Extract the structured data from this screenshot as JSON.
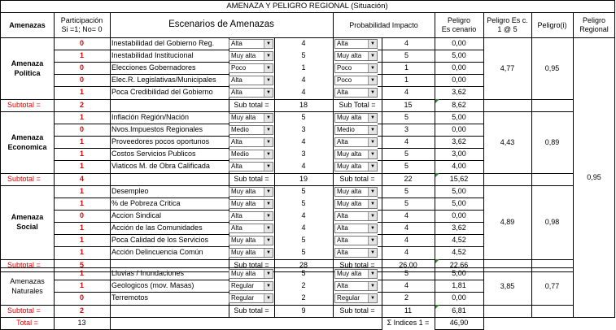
{
  "title": "AMENAZA Y PELIGRO REGIONAL (Situación)",
  "headers": {
    "amenazas": "Amenazas",
    "participacion_1": "Participación",
    "participacion_2": "Si =1; No= 0",
    "escenarios": "Escenarios de Amenazas",
    "probabilidad": "Probabilidad Impacto",
    "peligro_escenario_1": "Peligro",
    "peligro_escenario_2": "Es cenario",
    "peligro_esc_1": "Peligro Es c.",
    "peligro_esc_2": "1 @ 5",
    "peligro_i": "Peligro(i)",
    "peligro_regional_1": "Peligro",
    "peligro_regional_2": "Regional"
  },
  "groups": [
    {
      "name_1": "Amenaza",
      "name_2": "Politica",
      "rows": [
        {
          "part": "0",
          "scenario": "Inestabilidad del Gobierno Reg.",
          "sel1": "Alta",
          "n1": "4",
          "sel2": "Alta",
          "n2": "4",
          "peligro": "0,00"
        },
        {
          "part": "1",
          "scenario": "Inestabilidad Institucional",
          "sel1": "Muy alta",
          "n1": "5",
          "sel2": "Muy alta",
          "n2": "5",
          "peligro": "5,00"
        },
        {
          "part": "0",
          "scenario": "Elecciones Gobernadores",
          "sel1": "Poco",
          "n1": "1",
          "sel2": "Poco",
          "n2": "1",
          "peligro": "0,00"
        },
        {
          "part": "0",
          "scenario": "Elec.R. Legislativas/Municipales",
          "sel1": "Alta",
          "n1": "4",
          "sel2": "Poco",
          "n2": "1",
          "peligro": "0,00"
        },
        {
          "part": "1",
          "scenario": "Poca Credibilidad del Gobierno",
          "sel1": "Alta",
          "n1": "4",
          "sel2": "Alta",
          "n2": "4",
          "peligro": "3,62"
        }
      ],
      "subtotal": {
        "label": "Subtotal =",
        "part": "2",
        "label1": "Sub total =",
        "n1": "18",
        "label2": "Sub Total =",
        "n2": "15",
        "peligro": "8,62"
      },
      "peligro_esc": "4,77",
      "peligro_i": "0,95"
    },
    {
      "name_1": "Amenaza",
      "name_2": "Economica",
      "rows": [
        {
          "part": "1",
          "scenario": "Inflación Región/Nación",
          "sel1": "Muy alta",
          "n1": "5",
          "sel2": "Muy alta",
          "n2": "5",
          "peligro": "5,00"
        },
        {
          "part": "0",
          "scenario": "Nvos.Impuestos Regionales",
          "sel1": "Medio",
          "n1": "3",
          "sel2": "Medio",
          "n2": "3",
          "peligro": "0,00"
        },
        {
          "part": "1",
          "scenario": "Proveedores pocos oportunos",
          "sel1": "Alta",
          "n1": "4",
          "sel2": "Alta",
          "n2": "4",
          "peligro": "3,62"
        },
        {
          "part": "1",
          "scenario": "Costos Servicios Publicos",
          "sel1": "Medio",
          "n1": "3",
          "sel2": "Muy alta",
          "n2": "5",
          "peligro": "3,00"
        },
        {
          "part": "1",
          "scenario": "Viaticos M. de Obra Calificada",
          "sel1": "Alta",
          "n1": "4",
          "sel2": "Muy alta",
          "n2": "5",
          "peligro": "4,00"
        }
      ],
      "subtotal": {
        "label": "Subtotal =",
        "part": "4",
        "label1": "Sub total =",
        "n1": "19",
        "label2": "Sub total =",
        "n2": "22",
        "peligro": "15,62"
      },
      "peligro_esc": "4,43",
      "peligro_i": "0,89"
    },
    {
      "name_1": "Amenaza",
      "name_2": "Social",
      "rows": [
        {
          "part": "1",
          "scenario": "Desempleo",
          "sel1": "Muy alta",
          "n1": "5",
          "sel2": "Muy alta",
          "n2": "5",
          "peligro": "5,00"
        },
        {
          "part": "1",
          "scenario": "% de Pobreza Critica",
          "sel1": "Muy alta",
          "n1": "5",
          "sel2": "Muy alta",
          "n2": "5",
          "peligro": "5,00"
        },
        {
          "part": "0",
          "scenario": "Accion Sindical",
          "sel1": "Alta",
          "n1": "4",
          "sel2": "Alta",
          "n2": "4",
          "peligro": "0,00"
        },
        {
          "part": "1",
          "scenario": "Acción de las Comunidades",
          "sel1": "Alta",
          "n1": "4",
          "sel2": "Alta",
          "n2": "4",
          "peligro": "3,62"
        },
        {
          "part": "1",
          "scenario": "Poca Calidad de los Servicios",
          "sel1": "Muy alta",
          "n1": "5",
          "sel2": "Alta",
          "n2": "4",
          "peligro": "4,52"
        },
        {
          "part": "1",
          "scenario": "Acción Delincuencia Común",
          "sel1": "Muy alta",
          "n1": "5",
          "sel2": "Alta",
          "n2": "4",
          "peligro": "4,52"
        }
      ],
      "subtotal": {
        "label": "Subtotal =",
        "part": "5",
        "label1": "Sub total =",
        "n1": "28",
        "label2": "Sub total =",
        "n2": "26,00",
        "peligro": "22,66"
      },
      "peligro_esc": "4,89",
      "peligro_i": "0,98"
    },
    {
      "name_1": "Amenazas",
      "name_2": "Naturales",
      "rows": [
        {
          "part": "1",
          "scenario": "Lluvias / Inundaciones",
          "sel1": "Muy alta",
          "n1": "5",
          "sel2": "Muy alta",
          "n2": "5",
          "peligro": "5,00"
        },
        {
          "part": "1",
          "scenario": "Geologicos (mov. Masas)",
          "sel1": "Regular",
          "n1": "2",
          "sel2": "Alta",
          "n2": "4",
          "peligro": "1,81"
        },
        {
          "part": "0",
          "scenario": "Terremotos",
          "sel1": "Regular",
          "n1": "2",
          "sel2": "Regular",
          "n2": "2",
          "peligro": "0,00"
        }
      ],
      "subtotal": {
        "label": "Subtotal =",
        "part": "2",
        "label1": "Sub total =",
        "n1": "9",
        "label2": "Sub total =",
        "n2": "11",
        "peligro": "6,81"
      },
      "peligro_esc": "3,85",
      "peligro_i": "0,77"
    }
  ],
  "peligro_regional": "0,95",
  "total": {
    "label": "Total =",
    "value": "13",
    "indices_label": "Σ Indices 1 =",
    "indices_value": "46,90"
  }
}
